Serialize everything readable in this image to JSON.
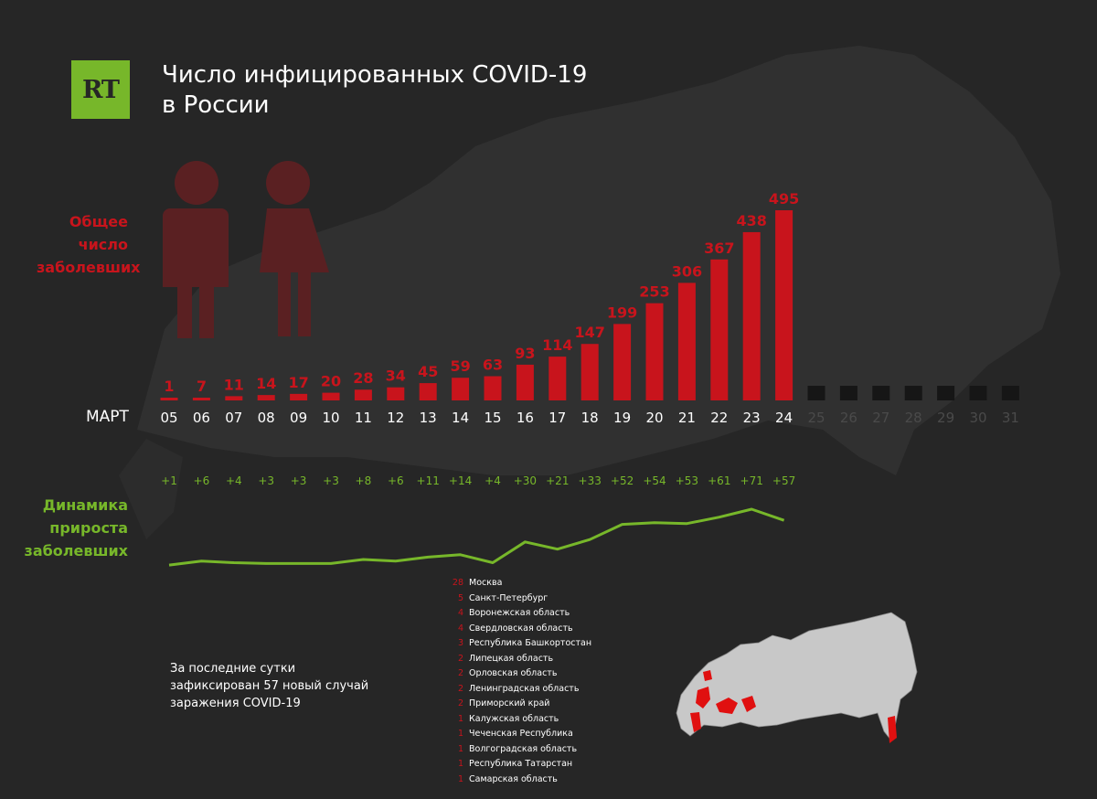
{
  "logo": {
    "text": "RT"
  },
  "title": {
    "line1": "Число инфицированных COVID-19",
    "line2": "в России"
  },
  "labels": {
    "total_line1": "Общее",
    "total_line2": "число",
    "total_line3": "заболевших",
    "dynamics_line1": "Динамика",
    "dynamics_line2": "прироста",
    "dynamics_line3": "заболевших",
    "month": "МАРТ"
  },
  "note": {
    "line1": "За последние сутки",
    "line2": "зафиксирован 57 новый случай",
    "line3": "заражения COVID-19"
  },
  "colors": {
    "background": "#262626",
    "bar": "#c8141c",
    "green": "#77b72a",
    "future_bar": "#161616",
    "future_label": "#4a4a4a"
  },
  "chart_data": [
    {
      "type": "bar",
      "title": "Общее число заболевших",
      "categories": [
        "05",
        "06",
        "07",
        "08",
        "09",
        "10",
        "11",
        "12",
        "13",
        "14",
        "15",
        "16",
        "17",
        "18",
        "19",
        "20",
        "21",
        "22",
        "23",
        "24"
      ],
      "values": [
        1,
        7,
        11,
        14,
        17,
        20,
        28,
        34,
        45,
        59,
        63,
        93,
        114,
        147,
        199,
        253,
        306,
        367,
        438,
        495
      ],
      "future_categories": [
        "25",
        "26",
        "27",
        "28",
        "29",
        "30",
        "31"
      ],
      "ylim": [
        0,
        495
      ]
    },
    {
      "type": "line",
      "title": "Динамика прироста заболевших",
      "categories": [
        "05",
        "06",
        "07",
        "08",
        "09",
        "10",
        "11",
        "12",
        "13",
        "14",
        "15",
        "16",
        "17",
        "18",
        "19",
        "20",
        "21",
        "22",
        "23",
        "24"
      ],
      "values": [
        1,
        6,
        4,
        3,
        3,
        3,
        8,
        6,
        11,
        14,
        4,
        30,
        21,
        33,
        52,
        54,
        53,
        61,
        71,
        57
      ],
      "labels": [
        "+1",
        "+6",
        "+4",
        "+3",
        "+3",
        "+3",
        "+8",
        "+6",
        "+11",
        "+14",
        "+4",
        "+30",
        "+21",
        "+33",
        "+52",
        "+54",
        "+53",
        "+61",
        "+71",
        "+57"
      ]
    }
  ],
  "regions": [
    {
      "count": "28",
      "name": "Москва"
    },
    {
      "count": "5",
      "name": "Санкт-Петербург"
    },
    {
      "count": "4",
      "name": "Воронежская область"
    },
    {
      "count": "4",
      "name": "Свердловская область"
    },
    {
      "count": "3",
      "name": "Республика Башкортостан"
    },
    {
      "count": "2",
      "name": "Липецкая область"
    },
    {
      "count": "2",
      "name": "Орловская область"
    },
    {
      "count": "2",
      "name": "Ленинградская область"
    },
    {
      "count": "2",
      "name": "Приморский край"
    },
    {
      "count": "1",
      "name": "Калужская область"
    },
    {
      "count": "1",
      "name": "Чеченская Республика"
    },
    {
      "count": "1",
      "name": "Волгоградская область"
    },
    {
      "count": "1",
      "name": "Республика Татарстан"
    },
    {
      "count": "1",
      "name": "Самарская область"
    }
  ]
}
